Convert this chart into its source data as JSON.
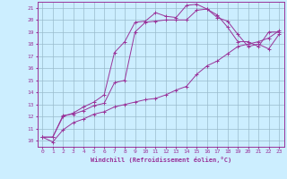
{
  "xlabel": "Windchill (Refroidissement éolien,°C)",
  "bg_color": "#cceeff",
  "line_color": "#993399",
  "grid_color": "#99bbcc",
  "xlim": [
    -0.5,
    23.5
  ],
  "ylim": [
    9.5,
    21.5
  ],
  "xtick_labels": [
    "0",
    "1",
    "2",
    "3",
    "4",
    "5",
    "6",
    "7",
    "8",
    "9",
    "10",
    "11",
    "12",
    "13",
    "14",
    "15",
    "16",
    "17",
    "18",
    "19",
    "20",
    "21",
    "22",
    "23"
  ],
  "ytick_labels": [
    "10",
    "11",
    "12",
    "13",
    "14",
    "15",
    "16",
    "17",
    "18",
    "19",
    "20",
    "21"
  ],
  "series": [
    {
      "x": [
        0,
        1,
        2,
        3,
        4,
        5,
        6,
        7,
        8,
        9,
        10,
        11,
        12,
        13,
        14,
        15,
        16,
        17,
        18,
        19,
        20,
        21,
        22,
        23
      ],
      "y": [
        10.3,
        10.3,
        12.0,
        12.3,
        12.8,
        13.2,
        13.8,
        17.3,
        18.2,
        19.8,
        19.9,
        20.6,
        20.3,
        20.2,
        21.2,
        21.3,
        20.9,
        20.4,
        19.4,
        18.2,
        18.2,
        17.8,
        19.0,
        19.0
      ]
    },
    {
      "x": [
        0,
        1,
        2,
        3,
        4,
        5,
        6,
        7,
        8,
        9,
        10,
        11,
        12,
        13,
        14,
        15,
        16,
        17,
        18,
        19,
        20,
        21,
        22,
        23
      ],
      "y": [
        10.3,
        10.3,
        12.1,
        12.2,
        12.5,
        12.9,
        13.1,
        14.8,
        15.0,
        19.0,
        19.8,
        19.9,
        20.0,
        20.0,
        20.0,
        20.8,
        20.9,
        20.2,
        19.9,
        18.8,
        17.8,
        18.0,
        17.6,
        18.8
      ]
    },
    {
      "x": [
        0,
        1,
        2,
        3,
        4,
        5,
        6,
        7,
        8,
        9,
        10,
        11,
        12,
        13,
        14,
        15,
        16,
        17,
        18,
        19,
        20,
        21,
        22,
        23
      ],
      "y": [
        10.3,
        9.9,
        10.9,
        11.5,
        11.8,
        12.2,
        12.4,
        12.8,
        13.0,
        13.2,
        13.4,
        13.5,
        13.8,
        14.2,
        14.5,
        15.5,
        16.2,
        16.6,
        17.2,
        17.8,
        18.0,
        18.2,
        18.5,
        19.1
      ]
    }
  ]
}
